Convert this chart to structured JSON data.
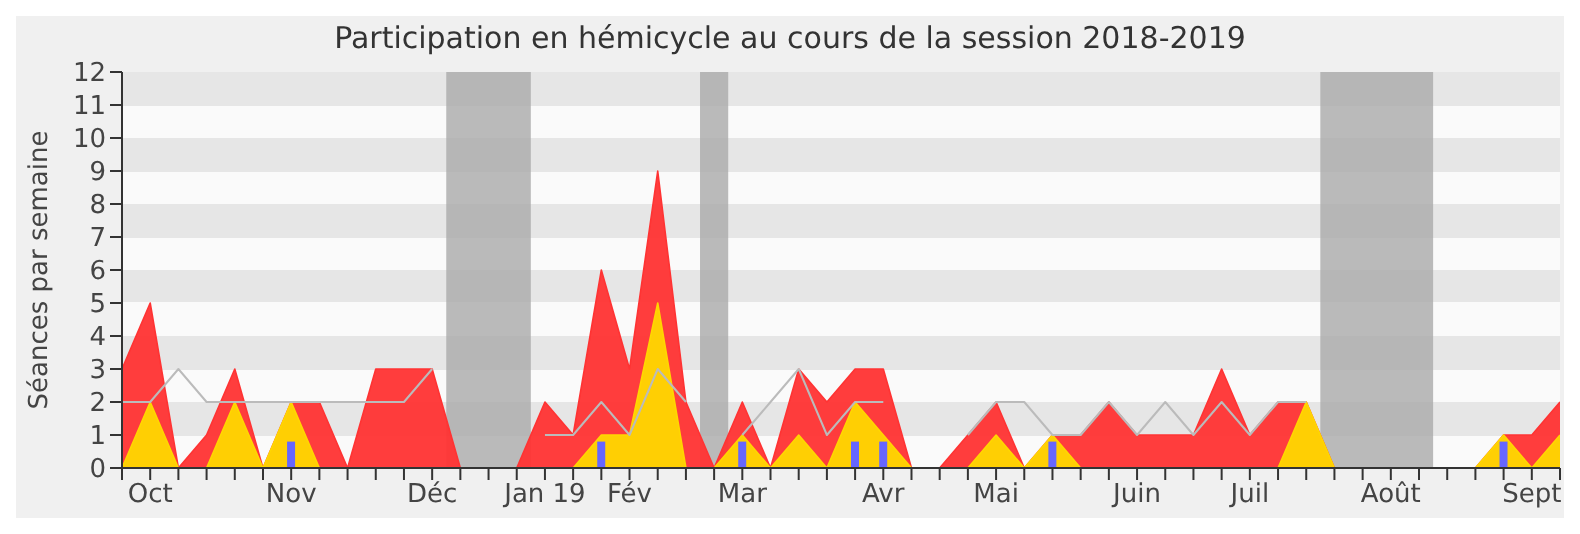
{
  "chart_data": {
    "type": "area",
    "title": "Participation en hémicycle au cours de la session 2018-2019",
    "ylabel": "Séances par semaine",
    "categories": [
      null,
      "Oct",
      null,
      null,
      null,
      null,
      "Nov",
      null,
      null,
      null,
      null,
      "Déc",
      null,
      null,
      null,
      "Jan 19",
      null,
      null,
      "Fév",
      null,
      null,
      null,
      "Mar",
      null,
      null,
      null,
      null,
      "Avr",
      null,
      null,
      null,
      "Mai",
      null,
      null,
      null,
      null,
      "Juin",
      null,
      null,
      null,
      "Juil",
      null,
      null,
      null,
      null,
      "Août",
      null,
      null,
      null,
      null,
      "Sept",
      null
    ],
    "ylim": [
      0,
      12
    ],
    "yticks": [
      0,
      1,
      2,
      3,
      4,
      5,
      6,
      7,
      8,
      9,
      10,
      11,
      12
    ],
    "series": [
      {
        "color": "#ff3333",
        "values": [
          3,
          5,
          0,
          1,
          3,
          0,
          2,
          2,
          0,
          3,
          3,
          3,
          0,
          0,
          0,
          2,
          1,
          6,
          3,
          9,
          2,
          0,
          2,
          0,
          3,
          2,
          3,
          3,
          0,
          0,
          1,
          2,
          0,
          1,
          1,
          2,
          1,
          1,
          1,
          3,
          1,
          2,
          2,
          0,
          0,
          0,
          0,
          0,
          0,
          1,
          1,
          2
        ]
      },
      {
        "type": "line",
        "color": "#bbbbbb",
        "values": [
          2,
          2,
          3,
          2,
          2,
          2,
          2,
          2,
          2,
          2,
          2,
          3,
          null,
          null,
          null,
          1,
          1,
          2,
          1,
          3,
          2,
          null,
          1,
          2,
          3,
          1,
          2,
          2,
          null,
          null,
          1,
          2,
          2,
          1,
          1,
          2,
          1,
          2,
          1,
          2,
          1,
          2,
          2,
          null,
          null,
          null,
          null,
          null,
          null,
          null,
          null,
          null
        ]
      },
      {
        "color": "#ffd700",
        "values": [
          0,
          2,
          0,
          0,
          2,
          0,
          2,
          0,
          0,
          0,
          0,
          0,
          0,
          0,
          0,
          0,
          0,
          1,
          1,
          5,
          0,
          0,
          1,
          0,
          1,
          0,
          2,
          1,
          0,
          0,
          0,
          1,
          0,
          1,
          0,
          0,
          0,
          0,
          0,
          0,
          0,
          0,
          2,
          0,
          0,
          0,
          0,
          0,
          0,
          1,
          0,
          1
        ]
      },
      {
        "type": "bar",
        "color": "#6666ff",
        "values": [
          null,
          null,
          null,
          null,
          null,
          null,
          0.8,
          null,
          null,
          null,
          null,
          null,
          null,
          null,
          null,
          null,
          null,
          0.8,
          null,
          null,
          null,
          null,
          0.8,
          null,
          null,
          null,
          0.8,
          0.8,
          null,
          null,
          null,
          null,
          null,
          0.8,
          null,
          null,
          null,
          null,
          null,
          null,
          null,
          null,
          null,
          null,
          null,
          null,
          null,
          null,
          null,
          0.8,
          null,
          null
        ]
      }
    ]
  }
}
